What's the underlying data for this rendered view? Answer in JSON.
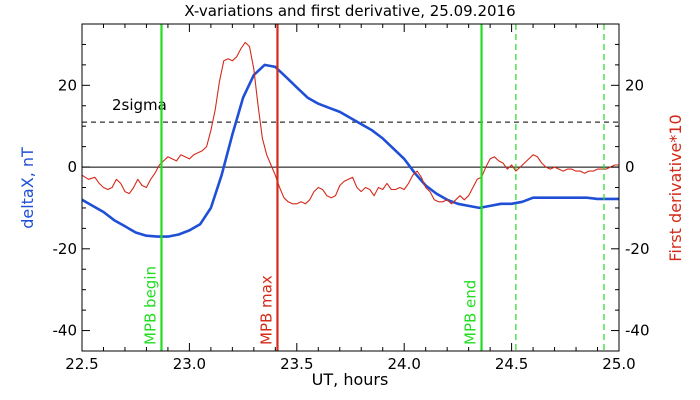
{
  "chart_data": {
    "type": "line",
    "title": "X-variations and first derivative, 25.09.2016",
    "xlabel": "UT, hours",
    "ylabel_left": "deltaX, nT",
    "ylabel_right": "First derivative*10",
    "xlim": [
      22.5,
      25.0
    ],
    "ylim": [
      -45,
      35
    ],
    "x_ticks": [
      "22.5",
      "23.0",
      "23.5",
      "24.0",
      "24.5",
      "25.0"
    ],
    "y_ticks_left": [
      "-40",
      "-20",
      "0",
      "20"
    ],
    "y_ticks_right": [
      "-40",
      "-20",
      "0",
      "20"
    ],
    "series": [
      {
        "color": "#1f4fd6",
        "x": [
          22.5,
          22.55,
          22.6,
          22.65,
          22.7,
          22.75,
          22.8,
          22.85,
          22.87,
          22.9,
          22.95,
          23.0,
          23.05,
          23.1,
          23.15,
          23.2,
          23.25,
          23.3,
          23.35,
          23.4,
          23.45,
          23.5,
          23.55,
          23.6,
          23.65,
          23.7,
          23.75,
          23.8,
          23.85,
          23.9,
          23.95,
          24.0,
          24.05,
          24.1,
          24.15,
          24.2,
          24.25,
          24.3,
          24.35,
          24.4,
          24.45,
          24.5,
          24.55,
          24.6,
          24.65,
          24.7,
          24.75,
          24.8,
          24.85,
          24.9,
          24.95,
          25.0
        ],
        "values": [
          -8.0,
          -9.5,
          -11.0,
          -13.0,
          -14.5,
          -16.0,
          -16.8,
          -17.0,
          -17.0,
          -17.0,
          -16.5,
          -15.5,
          -14.0,
          -10.0,
          -2.0,
          8.0,
          17.0,
          22.5,
          25.0,
          24.5,
          22.0,
          19.5,
          17.0,
          15.5,
          14.5,
          13.5,
          12.0,
          10.5,
          9.0,
          7.0,
          4.5,
          2.0,
          -1.5,
          -4.5,
          -6.5,
          -8.0,
          -9.0,
          -9.5,
          -10.0,
          -9.5,
          -9.0,
          -9.0,
          -8.5,
          -7.5,
          -7.5,
          -7.5,
          -7.5,
          -7.5,
          -7.5,
          -7.8,
          -7.8,
          -7.8
        ]
      },
      {
        "color": "#d42a1a",
        "x": [
          22.5,
          22.53,
          22.56,
          22.58,
          22.6,
          22.62,
          22.64,
          22.66,
          22.68,
          22.7,
          22.72,
          22.74,
          22.76,
          22.78,
          22.8,
          22.82,
          22.84,
          22.86,
          22.88,
          22.9,
          22.92,
          22.94,
          22.96,
          22.98,
          23.0,
          23.02,
          23.04,
          23.06,
          23.08,
          23.1,
          23.12,
          23.14,
          23.16,
          23.18,
          23.2,
          23.22,
          23.24,
          23.26,
          23.28,
          23.3,
          23.32,
          23.34,
          23.36,
          23.38,
          23.4,
          23.42,
          23.44,
          23.46,
          23.48,
          23.5,
          23.52,
          23.54,
          23.56,
          23.58,
          23.6,
          23.62,
          23.64,
          23.66,
          23.68,
          23.7,
          23.72,
          23.74,
          23.76,
          23.78,
          23.8,
          23.82,
          23.84,
          23.86,
          23.88,
          23.9,
          23.92,
          23.94,
          23.96,
          23.98,
          24.0,
          24.02,
          24.04,
          24.06,
          24.08,
          24.1,
          24.12,
          24.14,
          24.16,
          24.18,
          24.2,
          24.22,
          24.24,
          24.26,
          24.28,
          24.3,
          24.32,
          24.34,
          24.36,
          24.38,
          24.4,
          24.42,
          24.44,
          24.46,
          24.48,
          24.5,
          24.52,
          24.54,
          24.56,
          24.58,
          24.6,
          24.62,
          24.64,
          24.66,
          24.68,
          24.7,
          24.72,
          24.74,
          24.76,
          24.78,
          24.8,
          24.82,
          24.84,
          24.86,
          24.88,
          24.9,
          24.92,
          24.94,
          24.96,
          24.98,
          25.0
        ],
        "values": [
          -2.0,
          -3.0,
          -2.5,
          -4.0,
          -5.0,
          -5.5,
          -5.0,
          -3.0,
          -4.0,
          -6.0,
          -6.5,
          -5.0,
          -3.0,
          -4.5,
          -5.0,
          -3.0,
          -1.5,
          0.5,
          1.5,
          2.5,
          2.0,
          1.5,
          3.0,
          2.5,
          2.0,
          3.0,
          3.5,
          4.0,
          5.0,
          9.0,
          14.0,
          21.0,
          26.0,
          26.5,
          26.0,
          27.0,
          29.0,
          30.5,
          29.5,
          24.0,
          15.0,
          7.0,
          3.0,
          0.5,
          -2.0,
          -5.0,
          -7.5,
          -8.5,
          -9.0,
          -9.0,
          -8.5,
          -9.0,
          -8.0,
          -6.0,
          -5.0,
          -5.5,
          -7.0,
          -7.5,
          -7.0,
          -4.5,
          -3.5,
          -3.0,
          -2.5,
          -5.0,
          -6.0,
          -5.0,
          -5.5,
          -7.0,
          -5.0,
          -5.5,
          -4.0,
          -5.5,
          -5.5,
          -5.0,
          -5.5,
          -4.0,
          -2.0,
          -1.0,
          -2.5,
          -5.0,
          -6.0,
          -8.0,
          -8.5,
          -8.5,
          -8.0,
          -9.0,
          -8.0,
          -7.0,
          -8.0,
          -7.0,
          -5.0,
          -3.0,
          -2.5,
          0.0,
          2.0,
          2.5,
          1.5,
          1.0,
          -0.5,
          0.5,
          -1.0,
          0.0,
          1.0,
          2.0,
          3.0,
          2.5,
          1.0,
          0.0,
          -0.5,
          0.0,
          -0.5,
          -1.0,
          -0.5,
          -0.5,
          -1.0,
          -1.0,
          -1.5,
          -1.0,
          -1.0,
          -0.5,
          -0.5,
          -0.5,
          0.0,
          0.5,
          0.5
        ]
      }
    ],
    "reference_lines": [
      {
        "axis": "y",
        "value": 0,
        "color": "#000000",
        "style": "solid"
      },
      {
        "axis": "y",
        "value": 11,
        "color": "#000000",
        "style": "dashed",
        "label": "2sigma"
      }
    ],
    "markers": [
      {
        "x": 22.87,
        "label": "MPB begin",
        "color": "#22dd22",
        "style": "solid"
      },
      {
        "x": 23.41,
        "label": "MPB max",
        "color": "#d42a1a",
        "style": "solid"
      },
      {
        "x": 24.36,
        "label": "MPB end",
        "color": "#22dd22",
        "style": "solid"
      },
      {
        "x": 24.52,
        "label": "",
        "color": "#22dd22",
        "style": "dashed"
      },
      {
        "x": 24.93,
        "label": "",
        "color": "#22dd22",
        "style": "dashed"
      }
    ],
    "grid": false
  }
}
